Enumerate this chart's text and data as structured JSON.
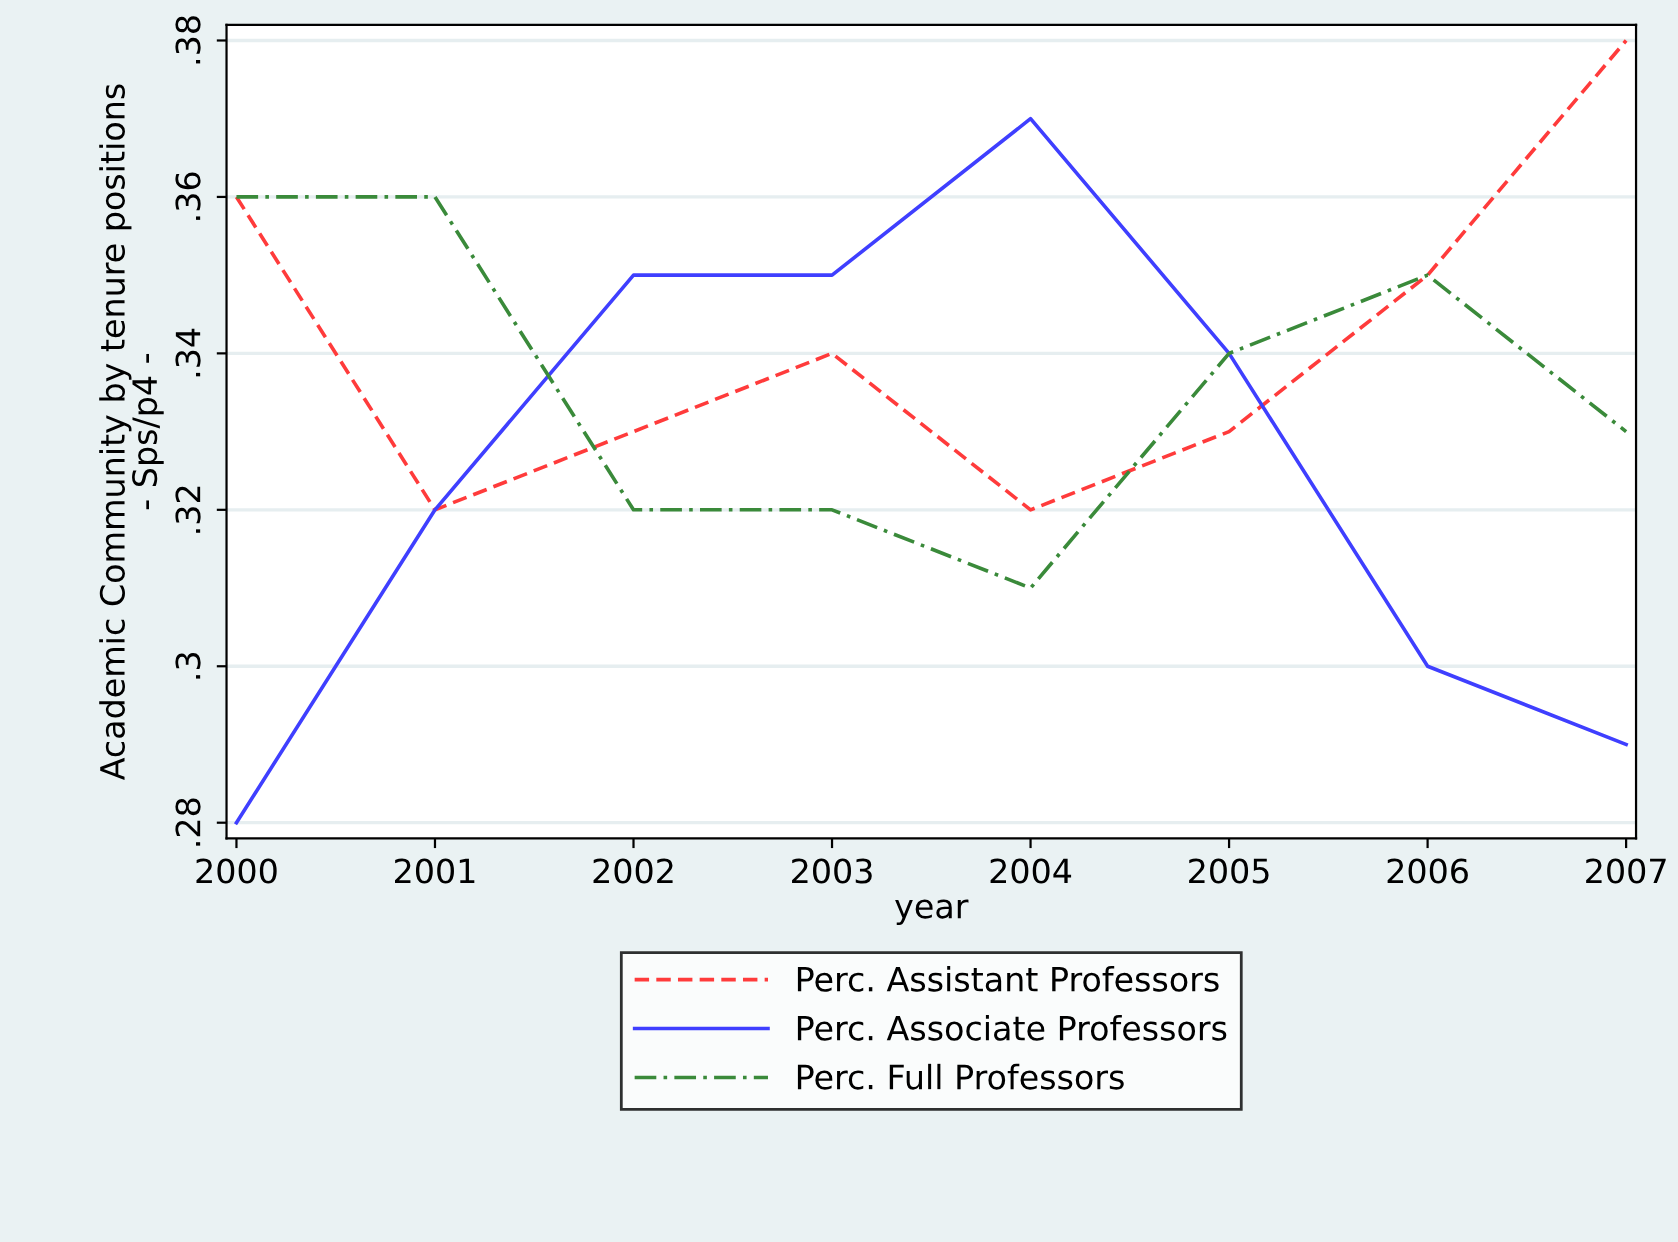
{
  "chart_data": {
    "type": "line",
    "xlabel": "year",
    "ylabel": "Academic Community by tenure positions\n- Sps/p4 -",
    "x": [
      2000,
      2001,
      2002,
      2003,
      2004,
      2005,
      2006,
      2007
    ],
    "series": [
      {
        "name": "Perc. Assistant Professors",
        "color": "#ff3b3b",
        "line_style": "dashed",
        "values": [
          0.36,
          0.32,
          0.33,
          0.34,
          0.32,
          0.33,
          0.35,
          0.38
        ]
      },
      {
        "name": "Perc. Associate Professors",
        "color": "#3f3fff",
        "line_style": "solid",
        "values": [
          0.28,
          0.32,
          0.35,
          0.35,
          0.37,
          0.34,
          0.3,
          0.29
        ]
      },
      {
        "name": "Perc. Full Professors",
        "color": "#3a8a3a",
        "line_style": "dashdot",
        "values": [
          0.36,
          0.36,
          0.32,
          0.32,
          0.31,
          0.34,
          0.35,
          0.33
        ]
      }
    ],
    "xlim": [
      1999.95,
      2007.05
    ],
    "xticks": [
      2000,
      2001,
      2002,
      2003,
      2004,
      2005,
      2006,
      2007
    ],
    "ylim": [
      0.278,
      0.382
    ],
    "yticks": [
      {
        "value": 0.28,
        "label": ".28"
      },
      {
        "value": 0.3,
        "label": ".3"
      },
      {
        "value": 0.32,
        "label": ".32"
      },
      {
        "value": 0.34,
        "label": ".34"
      },
      {
        "value": 0.36,
        "label": ".36"
      },
      {
        "value": 0.38,
        "label": ".38"
      }
    ],
    "grid": "y",
    "legend": "bottom"
  }
}
